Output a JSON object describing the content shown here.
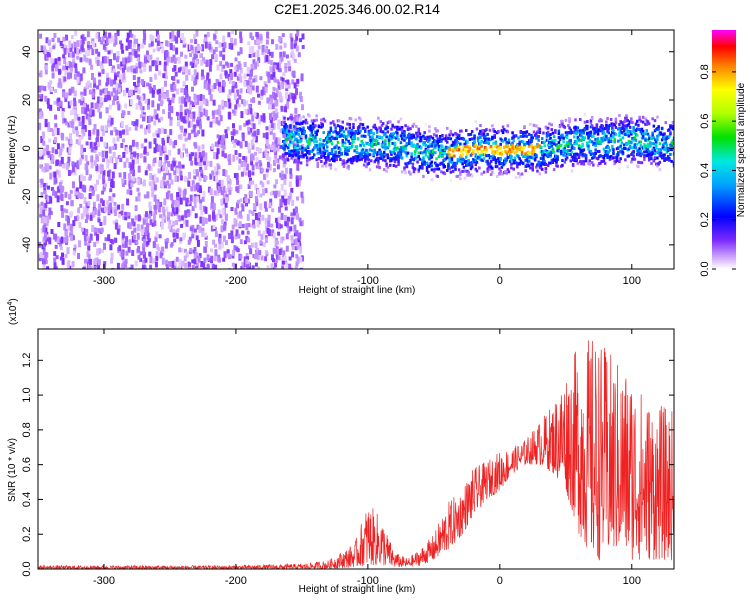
{
  "chart_data": [
    {
      "type": "heatmap",
      "title": "C2E1.2025.346.00.02.R14",
      "xlabel": "Height of straight line (km)",
      "ylabel": "Frequency (Hz)",
      "xlim": [
        -350,
        132
      ],
      "ylim": [
        -50,
        49
      ],
      "xticks": [
        -300,
        -200,
        -100,
        0,
        100
      ],
      "yticks": [
        -40,
        -20,
        0,
        20,
        40
      ],
      "colorbar": {
        "label": "Normalized spectral amplitude",
        "range": [
          0,
          0.97
        ],
        "ticks": [
          0.0,
          0.2,
          0.4,
          0.6,
          0.8
        ]
      },
      "bands": [
        {
          "name": "noise",
          "x_range": [
            -350,
            -150
          ],
          "freq_range": [
            -50,
            49
          ],
          "amplitude": 0.08
        },
        {
          "name": "signal",
          "x_range": [
            -165,
            132
          ],
          "center_freq_hz": [
            [
              -165,
              4
            ],
            [
              -120,
              3
            ],
            [
              -80,
              2
            ],
            [
              -50,
              -2
            ],
            [
              -20,
              0
            ],
            [
              0,
              0
            ],
            [
              30,
              0
            ],
            [
              60,
              3
            ],
            [
              100,
              4
            ],
            [
              130,
              2
            ]
          ],
          "half_width_hz": 6,
          "peak_amplitude": 0.9
        }
      ]
    },
    {
      "type": "line",
      "xlabel": "Height of straight line (km)",
      "ylabel": "SNR (10 * v/v)",
      "exponent_label": "(x10",
      "exponent_power": "4",
      "exponent_close": ")",
      "xlim": [
        -350,
        132
      ],
      "ylim": [
        0,
        1.38
      ],
      "xticks": [
        -300,
        -200,
        -100,
        0,
        100
      ],
      "yticks": [
        "0.0",
        "0.2",
        "0.4",
        "0.6",
        "0.8",
        "1.0",
        "1.2"
      ],
      "color": "#ee2222",
      "envelope": {
        "x": [
          -350,
          -200,
          -150,
          -130,
          -110,
          -100,
          -90,
          -80,
          -70,
          -60,
          -50,
          -40,
          -30,
          -20,
          -10,
          0,
          10,
          20,
          30,
          40,
          50,
          60,
          70,
          80,
          90,
          100,
          110,
          120,
          132
        ],
        "lower": [
          0.0,
          0.0,
          0.0,
          0.0,
          0.01,
          0.02,
          0.02,
          0.01,
          0.01,
          0.02,
          0.05,
          0.1,
          0.18,
          0.3,
          0.4,
          0.45,
          0.55,
          0.6,
          0.6,
          0.55,
          0.45,
          0.2,
          0.05,
          0.05,
          0.1,
          0.05,
          0.05,
          0.05,
          0.05
        ],
        "upper": [
          0.02,
          0.02,
          0.03,
          0.05,
          0.15,
          0.38,
          0.3,
          0.1,
          0.06,
          0.12,
          0.2,
          0.38,
          0.45,
          0.58,
          0.62,
          0.68,
          0.7,
          0.75,
          0.85,
          0.95,
          1.15,
          1.3,
          1.35,
          1.28,
          1.2,
          1.15,
          1.0,
          0.95,
          0.92
        ]
      }
    }
  ]
}
